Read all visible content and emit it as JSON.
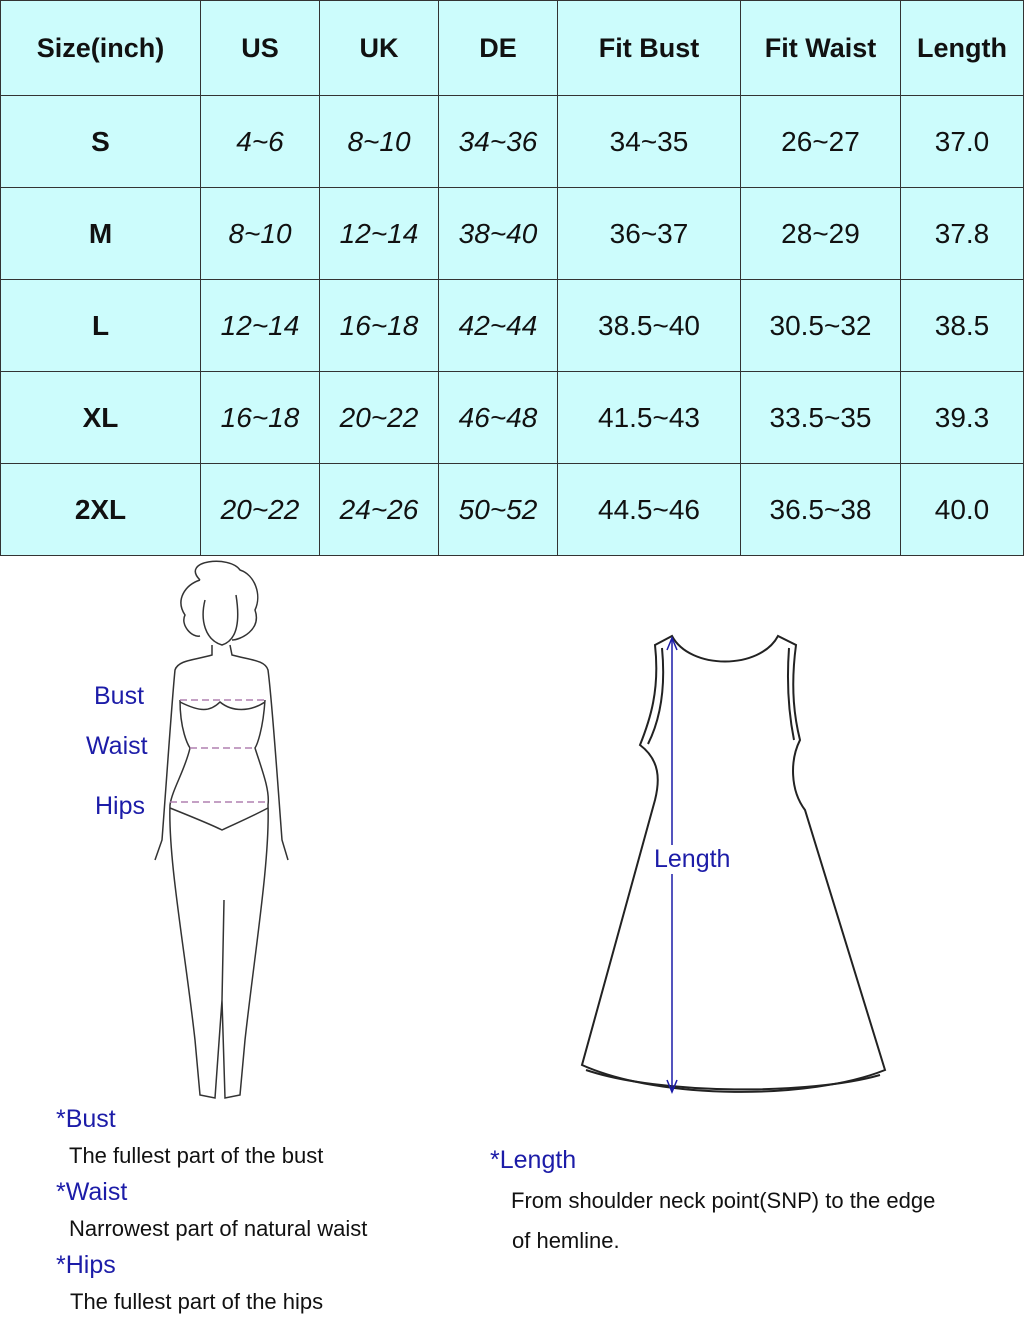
{
  "table": {
    "headers": [
      "Size(inch)",
      "US",
      "UK",
      "DE",
      "Fit Bust",
      "Fit Waist",
      "Length"
    ],
    "rows": [
      [
        "S",
        "4~6",
        "8~10",
        "34~36",
        "34~35",
        "26~27",
        "37.0"
      ],
      [
        "M",
        "8~10",
        "12~14",
        "38~40",
        "36~37",
        "28~29",
        "37.8"
      ],
      [
        "L",
        "12~14",
        "16~18",
        "42~44",
        "38.5~40",
        "30.5~32",
        "38.5"
      ],
      [
        "XL",
        "16~18",
        "20~22",
        "46~48",
        "41.5~43",
        "33.5~35",
        "39.3"
      ],
      [
        "2XL",
        "20~22",
        "24~26",
        "50~52",
        "44.5~46",
        "36.5~38",
        "40.0"
      ]
    ]
  },
  "body_figure": {
    "labels": {
      "bust": "Bust",
      "waist": "Waist",
      "hips": "Hips"
    }
  },
  "dress_figure": {
    "label": "Length"
  },
  "notes": {
    "bust_title": "*Bust",
    "bust_desc": "The fullest part of the bust",
    "waist_title": "*Waist",
    "waist_desc": "Narrowest part of natural waist",
    "hips_title": "*Hips",
    "hips_desc": "The fullest part of the hips",
    "length_title": "*Length",
    "length_desc1": "From shoulder neck point(SNP) to the edge",
    "length_desc2": "of hemline."
  },
  "colors": {
    "table_bg": "#ccfcfc",
    "label_blue": "#1c1ca8",
    "measure_line": "#b080b0"
  }
}
